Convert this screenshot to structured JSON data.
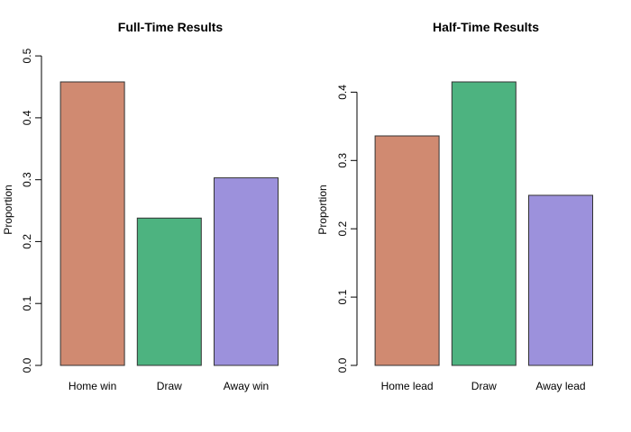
{
  "chart_data": [
    {
      "type": "bar",
      "title": "Full-Time Results",
      "xlabel": "",
      "ylabel": "Proportion",
      "categories": [
        "Home win",
        "Draw",
        "Away win"
      ],
      "values": [
        0.458,
        0.238,
        0.303
      ],
      "ylim": [
        0,
        0.5
      ],
      "yticks": [
        0.0,
        0.1,
        0.2,
        0.3,
        0.4,
        0.5
      ],
      "ytick_labels": [
        "0.0",
        "0.1",
        "0.2",
        "0.3",
        "0.4",
        "0.5"
      ],
      "colors": [
        "#d08a71",
        "#4db380",
        "#9c91dc"
      ],
      "grid": false,
      "legend": "none"
    },
    {
      "type": "bar",
      "title": "Half-Time Results",
      "xlabel": "",
      "ylabel": "Proportion",
      "categories": [
        "Home lead",
        "Draw",
        "Away lead"
      ],
      "values": [
        0.336,
        0.415,
        0.249
      ],
      "ylim": [
        0,
        0.415
      ],
      "yticks": [
        0.0,
        0.1,
        0.2,
        0.3,
        0.4
      ],
      "ytick_labels": [
        "0.0",
        "0.1",
        "0.2",
        "0.3",
        "0.4"
      ],
      "colors": [
        "#d08a71",
        "#4db380",
        "#9c91dc"
      ],
      "grid": false,
      "legend": "none"
    }
  ]
}
